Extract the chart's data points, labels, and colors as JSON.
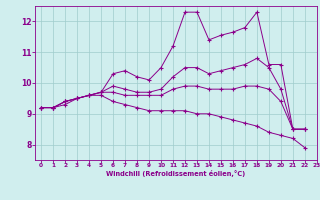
{
  "xlabel": "Windchill (Refroidissement éolien,°C)",
  "xlim": [
    -0.5,
    23
  ],
  "ylim": [
    7.5,
    12.5
  ],
  "xticks": [
    0,
    1,
    2,
    3,
    4,
    5,
    6,
    7,
    8,
    9,
    10,
    11,
    12,
    13,
    14,
    15,
    16,
    17,
    18,
    19,
    20,
    21,
    22,
    23
  ],
  "yticks": [
    8,
    9,
    10,
    11,
    12
  ],
  "bg_color": "#d0eeee",
  "line_color": "#8b008b",
  "grid_color": "#a0cccc",
  "series": [
    [
      9.2,
      9.2,
      9.4,
      9.5,
      9.6,
      9.7,
      10.3,
      10.4,
      10.2,
      10.1,
      10.5,
      11.2,
      12.3,
      12.3,
      11.4,
      11.55,
      11.65,
      11.8,
      12.3,
      10.6,
      10.6,
      8.5,
      8.5,
      null
    ],
    [
      9.2,
      9.2,
      9.4,
      9.5,
      9.6,
      9.7,
      9.9,
      9.8,
      9.7,
      9.7,
      9.8,
      10.2,
      10.5,
      10.5,
      10.3,
      10.4,
      10.5,
      10.6,
      10.8,
      10.5,
      9.8,
      8.5,
      8.5,
      null
    ],
    [
      9.2,
      9.2,
      9.4,
      9.5,
      9.6,
      9.7,
      9.7,
      9.6,
      9.6,
      9.6,
      9.6,
      9.8,
      9.9,
      9.9,
      9.8,
      9.8,
      9.8,
      9.9,
      9.9,
      9.8,
      9.4,
      8.5,
      8.5,
      null
    ],
    [
      9.2,
      9.2,
      9.3,
      9.5,
      9.6,
      9.6,
      9.4,
      9.3,
      9.2,
      9.1,
      9.1,
      9.1,
      9.1,
      9.0,
      9.0,
      8.9,
      8.8,
      8.7,
      8.6,
      8.4,
      8.3,
      8.2,
      7.9,
      null
    ]
  ]
}
